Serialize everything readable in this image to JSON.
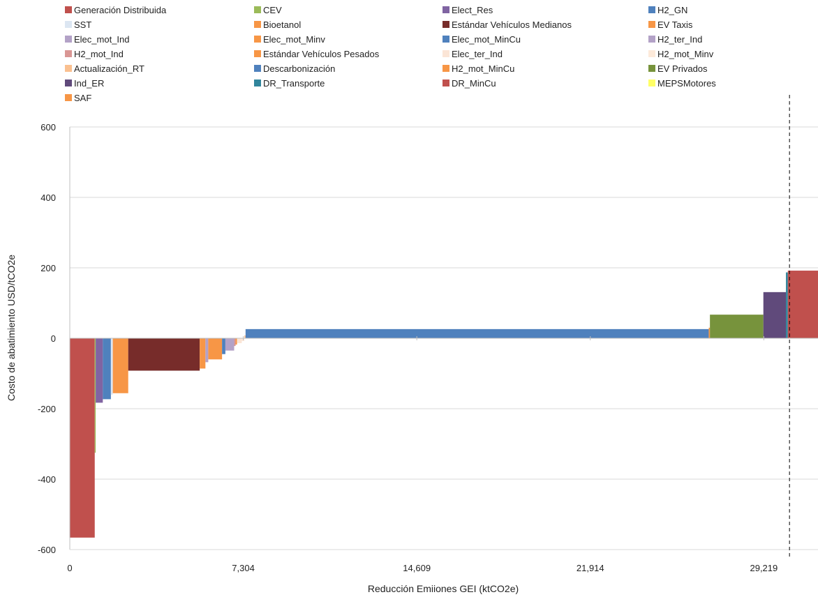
{
  "chart_data": {
    "type": "bar",
    "subtype": "marginal-abatement-cost-curve",
    "title": "",
    "xlabel": "Reducción Emiiones GEI (ktCO2e)",
    "ylabel": "Costo de abatimiento  USD/tCO2e",
    "xlim": [
      0,
      31500
    ],
    "ylim": [
      -600,
      600
    ],
    "x_ticks": [
      0,
      7304,
      14609,
      21914,
      29219
    ],
    "x_tick_labels": [
      "0",
      "7,304",
      "14,609",
      "21,914",
      "29,219"
    ],
    "y_ticks": [
      -600,
      -400,
      -200,
      0,
      200,
      400,
      600
    ],
    "y_tick_labels": [
      "-600",
      "-400",
      "-200",
      "0",
      "200",
      "400",
      "600"
    ],
    "grid": "horizontal",
    "legend_position": "top",
    "reference_line": {
      "x": 30300,
      "style": "dashed"
    },
    "series": [
      {
        "name": "Generación Distribuida",
        "color": "#C0504D",
        "x_start": 0,
        "width": 1050,
        "value": -566
      },
      {
        "name": "CEV",
        "color": "#9BBB59",
        "x_start": 1050,
        "width": 40,
        "value": -325
      },
      {
        "name": "Elect_Res",
        "color": "#8064A2",
        "x_start": 1090,
        "width": 300,
        "value": -183
      },
      {
        "name": "H2_GN",
        "color": "#4F81BD",
        "x_start": 1390,
        "width": 340,
        "value": -173
      },
      {
        "name": "SST",
        "color": "#DCE6F2",
        "x_start": 1730,
        "width": 80,
        "value": -160
      },
      {
        "name": "Bioetanol",
        "color": "#F79646",
        "x_start": 1810,
        "width": 650,
        "value": -156
      },
      {
        "name": "Estándar Vehículos Medianos",
        "color": "#772C2A",
        "x_start": 2460,
        "width": 3010,
        "value": -92
      },
      {
        "name": "EV Taxis",
        "color": "#F79646",
        "x_start": 5470,
        "width": 240,
        "value": -86
      },
      {
        "name": "Elec_mot_Ind",
        "color": "#B3A2C7",
        "x_start": 5710,
        "width": 120,
        "value": -68
      },
      {
        "name": "Elec_mot_Minv",
        "color": "#F79646",
        "x_start": 5830,
        "width": 580,
        "value": -60
      },
      {
        "name": "Elec_mot_MinCu",
        "color": "#4F81BD",
        "x_start": 6410,
        "width": 140,
        "value": -45
      },
      {
        "name": "H2_ter_Ind",
        "color": "#B3A2C7",
        "x_start": 6550,
        "width": 370,
        "value": -35
      },
      {
        "name": "H2_mot_Ind",
        "color": "#D99694",
        "x_start": 6920,
        "width": 60,
        "value": -22
      },
      {
        "name": "Estándar Vehículos Pesados",
        "color": "#F79646",
        "x_start": 6980,
        "width": 60,
        "value": -18
      },
      {
        "name": "Elec_ter_Ind",
        "color": "#FBE5D6",
        "x_start": 7040,
        "width": 200,
        "value": -14
      },
      {
        "name": "H2_mot_Minv",
        "color": "#FDEADA",
        "x_start": 7240,
        "width": 110,
        "value": -8
      },
      {
        "name": "Actualización_RT",
        "color": "#FAC090",
        "x_start": 7350,
        "width": 50,
        "value": 8
      },
      {
        "name": "Descarbonización",
        "color": "#4F81BD",
        "x_start": 7400,
        "width": 19500,
        "value": 26
      },
      {
        "name": "H2_mot_MinCu",
        "color": "#F79646",
        "x_start": 26900,
        "width": 50,
        "value": 30
      },
      {
        "name": "EV Privados",
        "color": "#77933C",
        "x_start": 26950,
        "width": 2250,
        "value": 67
      },
      {
        "name": "Ind_ER",
        "color": "#604A7B",
        "x_start": 29200,
        "width": 950,
        "value": 131
      },
      {
        "name": "DR_Transporte",
        "color": "#31859C",
        "x_start": 30150,
        "width": 80,
        "value": 187
      },
      {
        "name": "DR_MinCu",
        "color": "#C0504D",
        "x_start": 30230,
        "width": 1270,
        "value": 192
      },
      {
        "name": "MEPSMotores",
        "color": "#FFFF66",
        "x_start": 31500,
        "width": 0,
        "value": 0
      },
      {
        "name": "SAF",
        "color": "#F79646",
        "x_start": 31500,
        "width": 0,
        "value": 0
      }
    ]
  }
}
